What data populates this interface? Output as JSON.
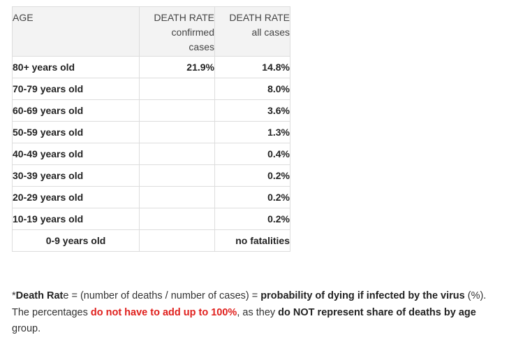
{
  "table": {
    "headers": {
      "age": "AGE",
      "confirmed_line1": "DEATH RATE",
      "confirmed_line2": "confirmed",
      "confirmed_line3": "cases",
      "all_line1": "DEATH RATE",
      "all_line2": "all cases"
    },
    "rows": [
      {
        "age": "80+ years old",
        "confirmed": "21.9%",
        "all": "14.8%"
      },
      {
        "age": "70-79 years old",
        "confirmed": "",
        "all": "8.0%"
      },
      {
        "age": "60-69 years old",
        "confirmed": "",
        "all": "3.6%"
      },
      {
        "age": "50-59 years old",
        "confirmed": "",
        "all": "1.3%"
      },
      {
        "age": "40-49 years old",
        "confirmed": "",
        "all": "0.4%"
      },
      {
        "age": "30-39 years old",
        "confirmed": "",
        "all": "0.2%"
      },
      {
        "age": "20-29 years old",
        "confirmed": "",
        "all": "0.2%"
      },
      {
        "age": "10-19 years old",
        "confirmed": "",
        "all": "0.2%"
      },
      {
        "age": "0-9 years old",
        "confirmed": "",
        "all": "no fatalities"
      }
    ]
  },
  "note": {
    "star": "*",
    "term_bold": "Death Rat",
    "term_tail": "e",
    "eq": " = (number of deaths / number of cases) = ",
    "prob_bold": "probability of dying if infected by the virus",
    "pct": " (%).",
    "sentence2_start": "The percentages ",
    "red_text": "do not have to add up to 100%",
    "sentence2_mid": ", as they ",
    "not_bold": "do NOT represent share of deaths by age",
    "end": "group."
  },
  "colors": {
    "header_bg": "#f3f3f3",
    "border": "#dddddd",
    "highlight_red": "#e0201d"
  }
}
